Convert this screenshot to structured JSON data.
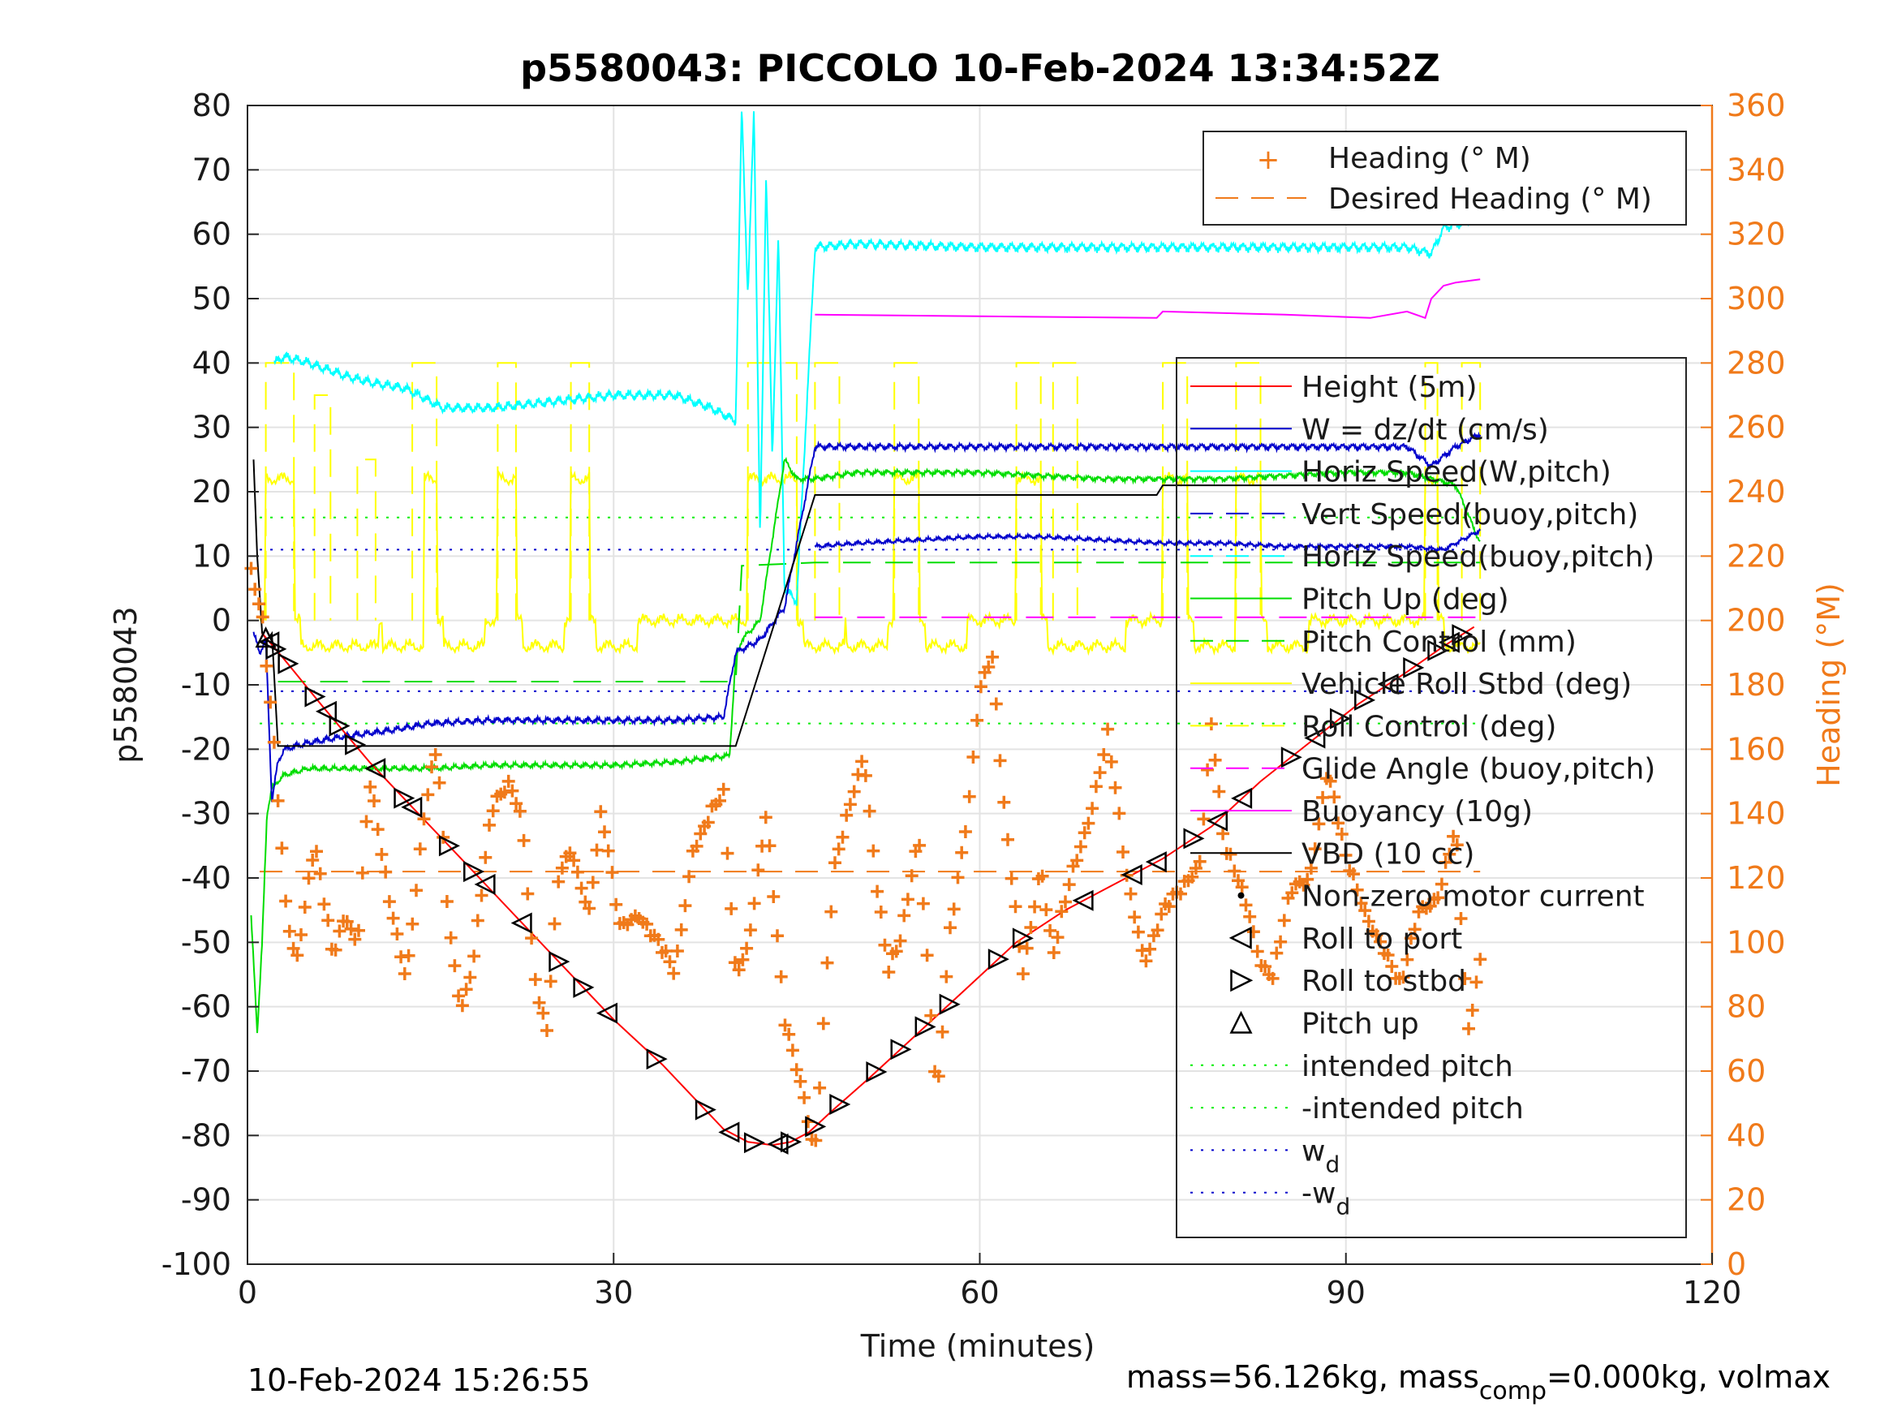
{
  "title": "p5580043: PICCOLO 10-Feb-2024 13:34:52Z",
  "xlabel": "Time (minutes)",
  "ylabel_left": "p5580043",
  "ylabel_right": "Heading (°M)",
  "footer_left": "10-Feb-2024 15:26:55",
  "footer_right": "mass=56.126kg, mass",
  "footer_right_sub": "comp",
  "footer_right_tail": "=0.000kg, volmax",
  "x_ticks": [
    "0",
    "30",
    "60",
    "90",
    "120"
  ],
  "y_ticks": [
    "80",
    "70",
    "60",
    "50",
    "40",
    "30",
    "20",
    "10",
    "0",
    "-10",
    "-20",
    "-30",
    "-40",
    "-50",
    "-60",
    "-70",
    "-80",
    "-90",
    "-100"
  ],
  "y2_ticks": [
    "360",
    "340",
    "320",
    "300",
    "280",
    "260",
    "240",
    "220",
    "200",
    "180",
    "160",
    "140",
    "120",
    "100",
    "80",
    "60",
    "40",
    "20",
    "0"
  ],
  "legend_top": [
    {
      "label": "Heading (° M)"
    },
    {
      "label": "Desired Heading (° M)"
    }
  ],
  "legend_main": [
    {
      "label": "Height (5m)"
    },
    {
      "label": "W = dz/dt (cm/s)"
    },
    {
      "label": "Horiz Speed(W,pitch)"
    },
    {
      "label": "Vert Speed(buoy,pitch)"
    },
    {
      "label": "Horiz Speed(buoy,pitch)"
    },
    {
      "label": "Pitch Up (deg)"
    },
    {
      "label": "Pitch Control (mm)"
    },
    {
      "label": "Vehicle Roll Stbd (deg)"
    },
    {
      "label": "Roll Control (deg)"
    },
    {
      "label": "Glide Angle (buoy,pitch)"
    },
    {
      "label": "Buoyancy (10g)"
    },
    {
      "label": "VBD (10 cc)"
    },
    {
      "label": "Non-zero motor current"
    },
    {
      "label": "Roll to port"
    },
    {
      "label": "Roll to stbd"
    },
    {
      "label": "Pitch up"
    },
    {
      "label": "intended pitch"
    },
    {
      "label": "-intended pitch"
    },
    {
      "label": "w",
      "sub": "d"
    },
    {
      "label": "-w",
      "sub": "d"
    }
  ],
  "colors": {
    "height": "#ff0000",
    "w": "#0000cc",
    "horiz_speed_w": "#00ffff",
    "vert_speed_buoy": "#0000cc",
    "horiz_speed_buoy": "#00ffff",
    "pitch": "#00dd00",
    "pitch_control": "#00dd00",
    "roll": "#ffff00",
    "roll_control": "#ffff00",
    "glide": "#ff00ff",
    "buoyancy": "#ff00ff",
    "vbd": "#000000",
    "heading": "#f07a1a",
    "intended_pitch": "#00ee00",
    "wd": "#0000cc",
    "right_axis": "#f07a1a"
  },
  "chart_data": {
    "type": "line",
    "xlim": [
      0,
      120
    ],
    "ylim": [
      -100,
      80
    ],
    "y2lim": [
      0,
      360
    ],
    "grid": true,
    "legend_placement": [
      "top-right",
      "right"
    ],
    "depth_trace": {
      "name": "Height (5m)",
      "x": [
        1.2,
        3,
        6,
        10,
        14,
        18,
        22,
        26,
        30,
        34,
        37,
        39,
        41,
        43,
        44.5,
        46,
        48,
        51,
        55,
        59,
        63,
        67,
        71,
        75,
        79,
        83,
        87,
        91,
        95,
        98,
        100.5
      ],
      "y": [
        -2,
        -6,
        -13,
        -22,
        -30,
        -38,
        -46,
        -54,
        -62,
        -69,
        -75,
        -79,
        -81,
        -81.5,
        -81,
        -79.5,
        -76,
        -71,
        -64,
        -57,
        -50,
        -45,
        -41,
        -37,
        -32,
        -25,
        -19,
        -13,
        -8,
        -4,
        -1
      ]
    },
    "roll_to_port_x": [
      1.8,
      6.5,
      10.5,
      13.5,
      19.5,
      22.5,
      29.5,
      39.5,
      43.5,
      68.5,
      72.5,
      74.5,
      79.5,
      81.5,
      87.5,
      93.5,
      98.5
    ],
    "roll_to_stbd_x": [
      2.3,
      3.3,
      5.5,
      7.5,
      8.8,
      12.8,
      16.5,
      18.5,
      25.5,
      27.5,
      33.5,
      37.5,
      41.5,
      44.5,
      46.5,
      48.5,
      51.5,
      53.5,
      55.5,
      57.5,
      61.5,
      63.5,
      77.5,
      85.5,
      89.5,
      91.5,
      95.5,
      97.5,
      99.5
    ],
    "pitch_up_x": [
      1.5
    ],
    "vbd": {
      "name": "VBD (10 cc)",
      "x": [
        0.5,
        0.8,
        1.2,
        1.6,
        2,
        2.5,
        40,
        46.5,
        74.5,
        75,
        91,
        96,
        100
      ],
      "y": [
        25,
        10,
        -2,
        -3,
        -2,
        -19.5,
        -19.5,
        19.5,
        19.5,
        21,
        21,
        21,
        21
      ]
    },
    "heading_desired_deg": 122,
    "intended_pitch": 16,
    "wd": 11,
    "heading_series": {
      "name": "Heading (° M)",
      "x": [
        0.3,
        1.2,
        2.2,
        3.2,
        4,
        5.5,
        7,
        8,
        9,
        10,
        11.5,
        13,
        14.5,
        15.5,
        16.5,
        17.5,
        18.5,
        20,
        21.5,
        22.5,
        23.5,
        24.5,
        25.5,
        26.5,
        28,
        29,
        30.5,
        32,
        33.5,
        35,
        36.5,
        38,
        39,
        40,
        41,
        42.5,
        44,
        45.5,
        46.5,
        48,
        49.5,
        50.5,
        51.5,
        52.5,
        53.5,
        55,
        56.5,
        57.5,
        59,
        60,
        61,
        62,
        63.5,
        65,
        66,
        67.5,
        69,
        70.5,
        72,
        73.5,
        75,
        76.5,
        78,
        79,
        80,
        81,
        82,
        83,
        84,
        85.5,
        87,
        88.5,
        90,
        91.5,
        93,
        94.5,
        96,
        97.5,
        99,
        100,
        101
      ],
      "y": [
        215,
        200,
        160,
        110,
        95,
        130,
        95,
        110,
        100,
        150,
        115,
        90,
        140,
        160,
        105,
        80,
        95,
        140,
        150,
        140,
        90,
        70,
        120,
        130,
        110,
        140,
        105,
        110,
        100,
        90,
        130,
        140,
        145,
        90,
        100,
        140,
        75,
        55,
        35,
        120,
        145,
        160,
        120,
        90,
        100,
        135,
        50,
        100,
        140,
        180,
        190,
        140,
        90,
        125,
        95,
        120,
        140,
        165,
        120,
        95,
        110,
        115,
        125,
        170,
        130,
        120,
        110,
        95,
        90,
        115,
        120,
        155,
        125,
        110,
        100,
        85,
        110,
        115,
        135,
        70,
        95
      ]
    },
    "horiz_speed_w": {
      "name": "Horiz Speed(W,pitch)",
      "x": [
        2.2,
        3,
        5,
        8,
        10,
        13,
        16,
        20,
        25,
        30,
        35,
        38,
        40,
        40.5,
        41,
        41.5,
        42,
        42.5,
        43,
        43.5,
        44,
        45,
        46.5,
        50,
        60,
        70,
        80,
        86,
        89,
        92,
        95,
        97,
        98,
        100,
        101
      ],
      "y": [
        40,
        41,
        40,
        38,
        37,
        36,
        33,
        33,
        34,
        35,
        35,
        33,
        31,
        80,
        50,
        80,
        12,
        70,
        25,
        60,
        5,
        3,
        58,
        58.5,
        58,
        58,
        58,
        58,
        58,
        58,
        58,
        57,
        61,
        62,
        64
      ]
    },
    "w_speed": {
      "name": "W = dz/dt (cm/s)",
      "x": [
        0.5,
        1,
        1.5,
        2,
        2.5,
        3,
        5,
        8,
        12,
        15,
        20,
        25,
        30,
        35,
        39,
        40,
        42,
        44,
        46.5,
        50,
        60,
        70,
        80,
        90,
        95,
        97,
        99,
        101
      ],
      "y": [
        -2,
        -5,
        -3,
        -28,
        -22,
        -20,
        -19,
        -18,
        -17,
        -16,
        -15.5,
        -15.5,
        -15.5,
        -15.5,
        -15,
        -5,
        -3,
        2,
        27,
        27,
        27,
        27,
        27,
        27,
        27,
        24,
        27,
        29
      ]
    },
    "pitch": {
      "name": "Pitch Up (deg)",
      "x": [
        0.3,
        0.8,
        1.2,
        1.6,
        2,
        2.5,
        3,
        5,
        10,
        15,
        20,
        25,
        30,
        35,
        39.5,
        40,
        40.5,
        42,
        44,
        45,
        46.5,
        50,
        60,
        70,
        80,
        90,
        95,
        99,
        101
      ],
      "y": [
        -46,
        -64,
        -50,
        -30,
        -26,
        -25,
        -24,
        -23,
        -23,
        -23,
        -22.5,
        -22.5,
        -22.5,
        -22,
        -21,
        -6,
        -3,
        0,
        25,
        22,
        22,
        23,
        23,
        22,
        22,
        23,
        23,
        21,
        12
      ]
    },
    "vert_speed_buoy": {
      "name": "Vert Speed(buoy,pitch)",
      "x": [
        46.5,
        50,
        55,
        60,
        65,
        70,
        75,
        80,
        85,
        90,
        95,
        98,
        100,
        101
      ],
      "y": [
        11.5,
        12,
        12.5,
        13,
        13,
        12.5,
        12,
        12,
        11.5,
        11.5,
        11.5,
        11,
        13,
        14
      ]
    },
    "pitch_control": {
      "name": "Pitch Control (mm)",
      "x": [
        2.5,
        40,
        40.5,
        46.5,
        101
      ],
      "y": [
        -9.5,
        -9.5,
        8.5,
        9,
        9
      ]
    },
    "glide": {
      "name": "Glide Angle (buoy,pitch)",
      "x": [
        46.5,
        101
      ],
      "y": [
        0.5,
        0.5
      ]
    },
    "buoyancy": {
      "name": "Buoyancy (10g)",
      "x": [
        46.5,
        74.5,
        75,
        85,
        92,
        95,
        96.5,
        97,
        98,
        99,
        101
      ],
      "y": [
        47.5,
        47,
        48,
        47.5,
        47,
        48,
        47,
        50,
        52,
        52.5,
        53
      ]
    },
    "roll_control": {
      "name": "Roll Control (deg)",
      "segments": [
        [
          1.5,
          3.8,
          40
        ],
        [
          5.5,
          6.8,
          35
        ],
        [
          9,
          10.5,
          25
        ],
        [
          13.5,
          15.5,
          40
        ],
        [
          20.5,
          22,
          40
        ],
        [
          26.5,
          28,
          40
        ],
        [
          41,
          45,
          40
        ],
        [
          46.5,
          48.5,
          40
        ],
        [
          53,
          55,
          40
        ],
        [
          63,
          65,
          40
        ],
        [
          66,
          68,
          40
        ],
        [
          75,
          77,
          40
        ],
        [
          81,
          83,
          40
        ],
        [
          96.5,
          97.5,
          40
        ],
        [
          99.5,
          101,
          40
        ]
      ]
    },
    "roll": {
      "name": "Vehicle Roll Stbd (deg)",
      "baseline": 0
    }
  }
}
